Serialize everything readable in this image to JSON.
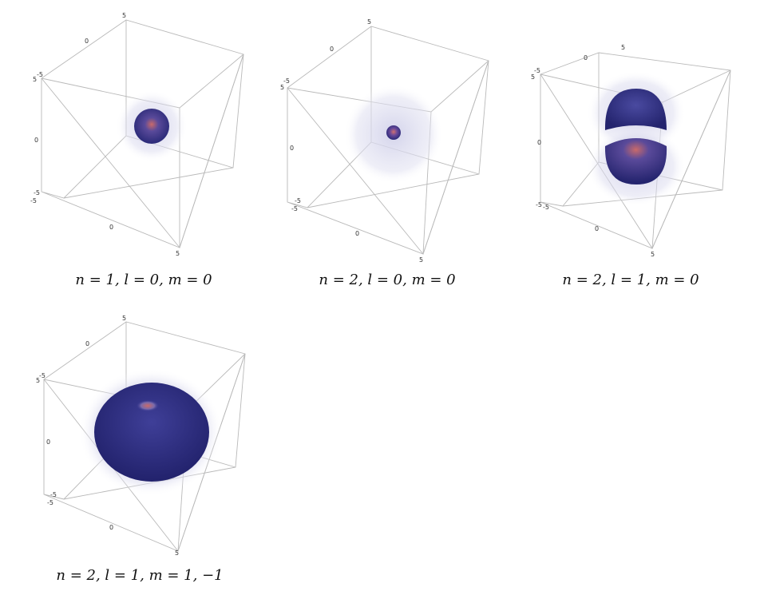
{
  "panels": [
    {
      "caption": "n = 1, l = 0, m = 0",
      "ticks": {
        "top": "5",
        "upper_left_a": "0",
        "upper_left_b": "-5",
        "upper_left_c": "5",
        "mid_left": "0",
        "lower_left_a": "-5",
        "lower_left_b": "-5",
        "bottom_mid": "0",
        "bottom_right": "5"
      },
      "orbital": "1s"
    },
    {
      "caption": "n = 2, l = 0, m = 0",
      "ticks": {
        "top": "5",
        "upper_left_a": "0",
        "upper_left_b": "-5",
        "upper_left_c": "5",
        "mid_left": "0",
        "lower_left_a": "-5",
        "lower_left_b": "-5",
        "bottom_mid": "0",
        "bottom_right": "5"
      },
      "orbital": "2s"
    },
    {
      "caption": "n = 2, l = 1, m = 0",
      "ticks": {
        "top": "5",
        "upper_left_a": "0",
        "upper_left_b": "-5",
        "upper_left_c": "5",
        "mid_left": "0",
        "lower_left_a": "-5",
        "lower_left_b": "-5",
        "bottom_mid": "0",
        "bottom_right": "5"
      },
      "orbital": "2p0"
    },
    {
      "caption": "n = 2, l = 1, m = 1, −1",
      "ticks": {
        "top": "5",
        "upper_left_a": "0",
        "upper_left_b": "-5",
        "upper_left_c": "5",
        "mid_left": "0",
        "lower_left_a": "-5",
        "lower_left_b": "-5",
        "bottom_mid": "0",
        "bottom_right": "5"
      },
      "orbital": "2p1"
    }
  ],
  "colors": {
    "lobe": "#3b3a8f",
    "lobe_dark": "#2a2a78",
    "halo": "#c9c8e6",
    "core": "#c96a6a"
  }
}
